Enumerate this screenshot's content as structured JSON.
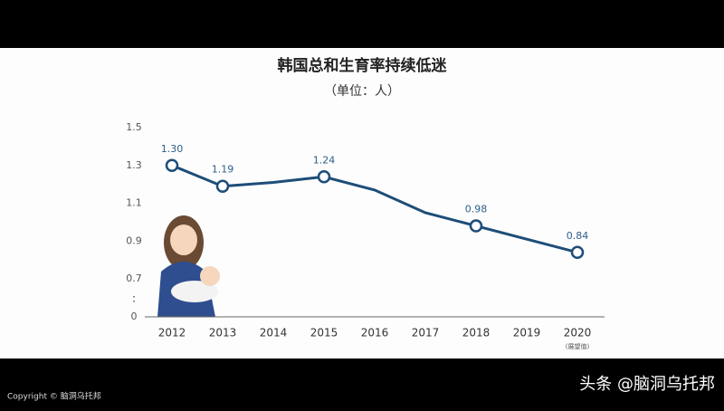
{
  "chart_data": {
    "type": "line",
    "title": "韩国总和生育率持续低迷",
    "subtitle": "（单位：人）",
    "categories": [
      "2012",
      "2013",
      "2014",
      "2015",
      "2016",
      "2017",
      "2018",
      "2019",
      "2020"
    ],
    "values": [
      1.3,
      1.19,
      1.21,
      1.24,
      1.17,
      1.05,
      0.98,
      0.91,
      0.84
    ],
    "value_labels": [
      "1.30",
      "1.19",
      null,
      "1.24",
      null,
      null,
      "0.98",
      null,
      "0.84"
    ],
    "x_note": "(展望值)",
    "color": "#1d4d78",
    "ylim": [
      0,
      1.5
    ],
    "axis_break": [
      0,
      0.7
    ],
    "yticks": [
      0,
      0.7,
      0.9,
      1.1,
      1.3,
      1.5
    ],
    "grid": false
  },
  "footer": {
    "copyright": "Copyright © 脑洞乌托邦",
    "source": "头条 @脑洞乌托邦"
  }
}
